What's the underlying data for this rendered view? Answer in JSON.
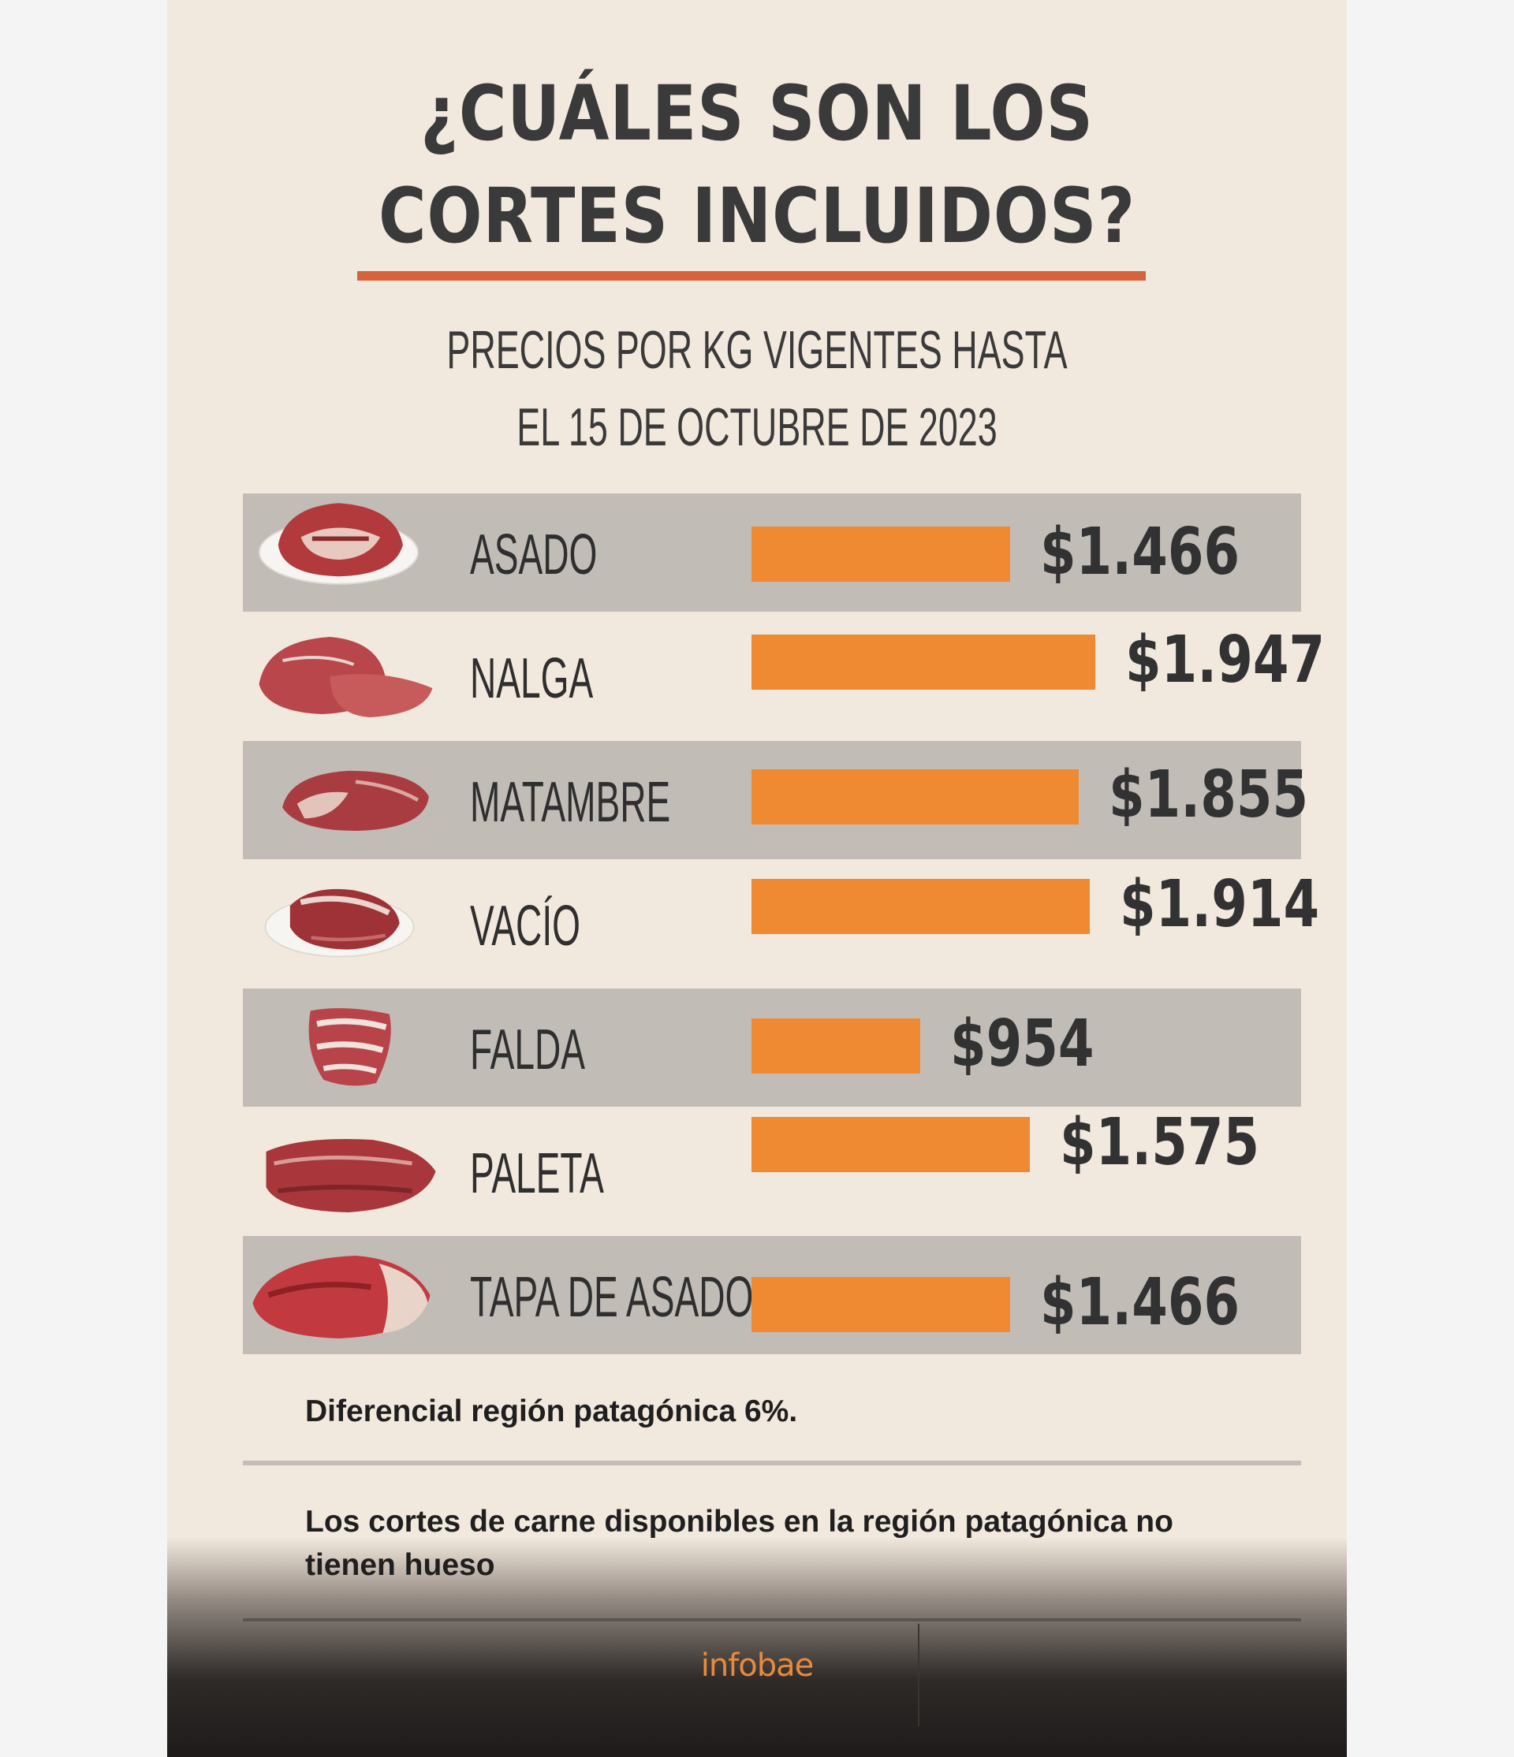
{
  "header": {
    "title_line_1": "¿CUÁLES SON LOS",
    "title_line_2": "CORTES INCLUIDOS?",
    "subtitle_line_1": "PRECIOS  POR KG VIGENTES HASTA",
    "subtitle_line_2": "EL 15 DE OCTUBRE DE 2023"
  },
  "colors": {
    "background": "#f2e9de",
    "band": "#c2bcb7",
    "bar": "#ef8a33",
    "accent_rule": "#d8623b",
    "text": "#323232",
    "brand": "#e98a3a"
  },
  "chart_data": {
    "type": "bar",
    "orientation": "horizontal",
    "title": "¿CUÁLES SON LOS CORTES INCLUIDOS?",
    "subtitle": "PRECIOS  POR KG VIGENTES HASTA EL 15 DE OCTUBRE DE 2023",
    "categories": [
      "ASADO",
      "NALGA",
      "MATAMBRE",
      "VACÍO",
      "FALDA",
      "PALETA",
      "TAPA DE ASADO"
    ],
    "values": [
      1466,
      1947,
      1855,
      1914,
      954,
      1575,
      1466
    ],
    "value_labels": [
      "$1.466",
      "$1.947",
      "$1.855",
      "$1.914",
      "$954",
      "$1.575",
      "$1.466"
    ],
    "xlim": [
      0,
      1947
    ],
    "unit": "$ por kg",
    "icons": [
      "asado-meat-icon",
      "nalga-meat-icon",
      "matambre-meat-icon",
      "vacio-meat-icon",
      "falda-meat-icon",
      "paleta-meat-icon",
      "tapa-de-asado-meat-icon"
    ]
  },
  "notes": {
    "note_1": "Diferencial región patagónica 6%.",
    "note_2": "Los cortes de carne disponibles en la región patagónica no tienen hueso"
  },
  "brand": {
    "name": "infobae"
  }
}
